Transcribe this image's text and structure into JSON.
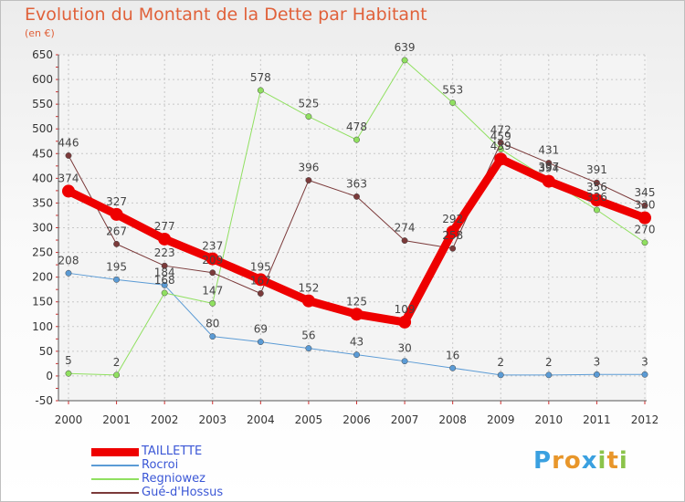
{
  "chart_data": {
    "type": "line",
    "title": "Evolution du Montant de la Dette par Habitant",
    "ylabel": "(en €)",
    "xlabel": "",
    "x": [
      "2000",
      "2001",
      "2002",
      "2003",
      "2004",
      "2005",
      "2006",
      "2007",
      "2008",
      "2009",
      "2010",
      "2011",
      "2012"
    ],
    "ylim": [
      -50,
      650
    ],
    "yticks": [
      -50,
      0,
      50,
      100,
      150,
      200,
      250,
      300,
      350,
      400,
      450,
      500,
      550,
      600,
      650
    ],
    "grid": true,
    "legend_position": "bottom-left",
    "series": [
      {
        "name": "TAILLETTE",
        "color": "#ee0000",
        "values": [
          374,
          327,
          277,
          237,
          195,
          152,
          125,
          109,
          292,
          439,
          394,
          356,
          320
        ]
      },
      {
        "name": "Rocroi",
        "color": "#5b9bd5",
        "values": [
          208,
          195,
          184,
          80,
          69,
          56,
          43,
          30,
          16,
          2,
          2,
          3,
          3
        ]
      },
      {
        "name": "Regniowez",
        "color": "#90e060",
        "values": [
          5,
          2,
          168,
          147,
          578,
          525,
          478,
          639,
          553,
          459,
          397,
          336,
          270
        ]
      },
      {
        "name": "Gué-d'Hossus",
        "color": "#7b3a3a",
        "values": [
          446,
          267,
          223,
          209,
          167,
          396,
          363,
          274,
          258,
          472,
          431,
          391,
          345
        ]
      }
    ]
  },
  "logo": {
    "letters": [
      "P",
      "r",
      "o",
      "x",
      "i",
      "t",
      "i"
    ],
    "colors": [
      "#3aa0e0",
      "#e8962a",
      "#e8962a",
      "#3aa0e0",
      "#8bc34a",
      "#e8962a",
      "#8bc34a"
    ]
  }
}
